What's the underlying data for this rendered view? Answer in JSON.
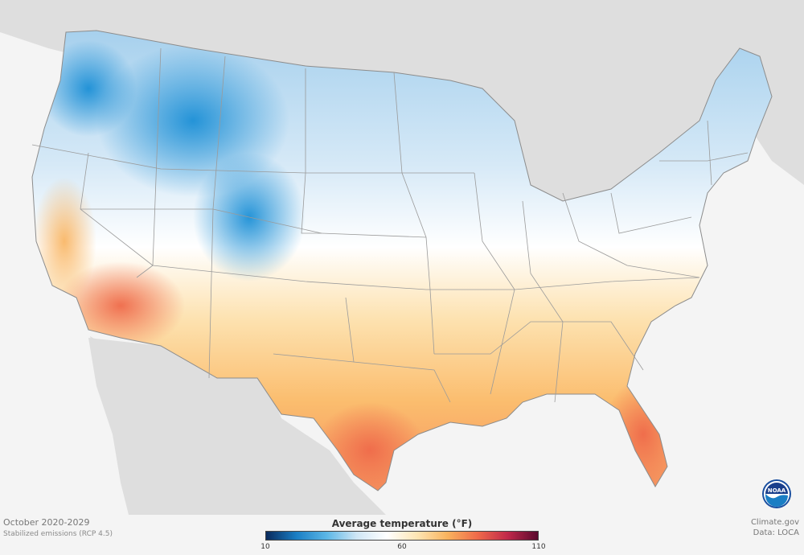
{
  "map": {
    "period": "October 2020-2029",
    "scenario": "Stabilized emissions (RCP 4.5)",
    "credit_site": "Climate.gov",
    "credit_data": "Data: LOCA",
    "logo_text": "NOAA"
  },
  "legend": {
    "title": "Average temperature (°F)",
    "ticks": [
      "10",
      "60",
      "110"
    ],
    "colors": [
      "#0a2a5c",
      "#1a7ec4",
      "#5bb6e6",
      "#cfe6f5",
      "#ffffff",
      "#fde5b4",
      "#f9b35e",
      "#ef6a4a",
      "#c0284a",
      "#5a0a2e"
    ]
  },
  "palette": {
    "cold": "#1b8fd6",
    "cool": "#bcdcf2",
    "neutral": "#ffffff",
    "warm": "#fcc97c",
    "hot": "#f2784f",
    "land_outside": "#dedede",
    "ocean": "#f4f4f4",
    "border": "#9a9a9a"
  }
}
